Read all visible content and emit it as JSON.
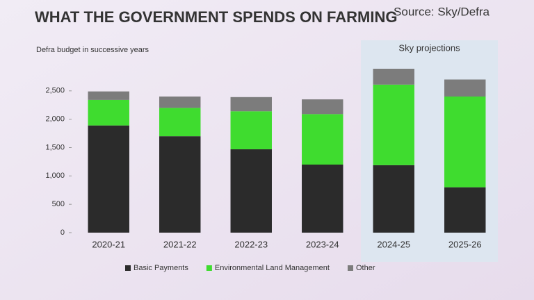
{
  "chart_data": {
    "type": "stacked_bar",
    "title": "WHAT THE GOVERNMENT SPENDS ON FARMING",
    "subtitle": "Defra budget in successive years",
    "source": "Source: Sky/Defra",
    "annotation": "Sky projections",
    "categories": [
      "2020-21",
      "2021-22",
      "2022-23",
      "2023-24",
      "2024-25",
      "2025-26"
    ],
    "series": [
      {
        "name": "Basic Payments",
        "color": "#2b2b2b",
        "values": [
          1890,
          1700,
          1470,
          1200,
          1190,
          800
        ]
      },
      {
        "name": "Environmental Land Management",
        "color": "#3fdc2f",
        "values": [
          450,
          500,
          670,
          890,
          1420,
          1600
        ]
      },
      {
        "name": "Other",
        "color": "#7c7c7c",
        "values": [
          150,
          200,
          250,
          260,
          280,
          300
        ]
      }
    ],
    "ylim": [
      0,
      3000
    ],
    "yticks": [
      0,
      500,
      {
        "value": 1000,
        "label": "1,000"
      },
      {
        "value": 1500,
        "label": "1,500"
      },
      {
        "value": 2000,
        "label": "2,000"
      },
      {
        "value": 2500,
        "label": "2,500"
      }
    ],
    "grid": false
  }
}
